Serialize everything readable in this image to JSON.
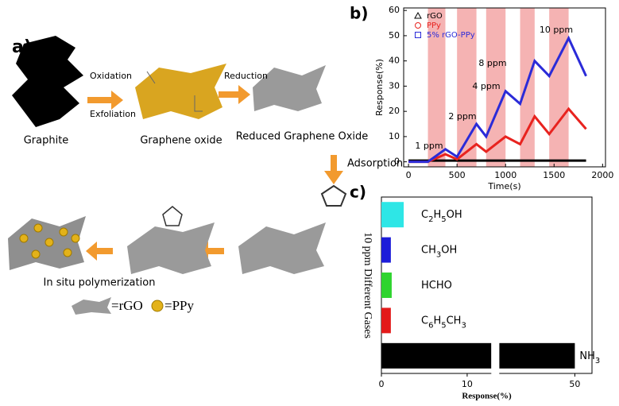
{
  "diagram": {
    "panel_label": "a)",
    "start": "Graphite",
    "step1_top": "Oxidation",
    "step1_bottom": "Exfoliation",
    "intermediate": "Graphene oxide",
    "step2": "Reduction",
    "reduced": "Reduced Graphene Oxide",
    "step3": "Adsorption",
    "final": "In situ polymerization",
    "legend_rgo": "=rGO",
    "legend_ppy": "=PPy"
  },
  "chart_data": [
    {
      "type": "line",
      "panel_label": "b)",
      "x_label": "Time(s)",
      "y_label": "Response(%)",
      "x": [
        0,
        200,
        380,
        500,
        700,
        800,
        1000,
        1150,
        1300,
        1450,
        1650,
        1830
      ],
      "series": [
        {
          "name": "rGO",
          "color": "#000000",
          "marker": "triangle",
          "values": [
            0.5,
            0.5,
            0.5,
            0.5,
            0.5,
            0.5,
            0.5,
            0.5,
            0.5,
            0.5,
            0.5,
            0.5
          ]
        },
        {
          "name": "PPy",
          "color": "#e8231f",
          "marker": "circle",
          "values": [
            0,
            0,
            3,
            1,
            7,
            4,
            10,
            7,
            18,
            11,
            21,
            13
          ]
        },
        {
          "name": "5% rGO-PPy",
          "color": "#2b2bd8",
          "marker": "square",
          "values": [
            0,
            0,
            5,
            2,
            15,
            10,
            28,
            23,
            40,
            34,
            49,
            34
          ]
        }
      ],
      "shaded_spans": [
        [
          200,
          380
        ],
        [
          500,
          700
        ],
        [
          800,
          1000
        ],
        [
          1150,
          1300
        ],
        [
          1450,
          1650
        ]
      ],
      "annotations": [
        "1 ppm",
        "2 ppm",
        "4 ppm",
        "8 ppm",
        "10 ppm"
      ],
      "xlim": [
        -50,
        2030
      ],
      "xticks": [
        0,
        500,
        1000,
        1500,
        2000
      ],
      "ylim": [
        -2,
        61
      ],
      "yticks": [
        0,
        10,
        20,
        30,
        40,
        50,
        60
      ],
      "legend": "upper-left"
    },
    {
      "type": "hbar",
      "panel_label": "c)",
      "x_label": "Response(%)",
      "y_label": "10 ppm Different Gases",
      "categories": [
        "C2H5OH",
        "CH3OH",
        "HCHO",
        "C6H5CH3",
        "NH3"
      ],
      "values": [
        2.6,
        1.1,
        1.2,
        1.1,
        50
      ],
      "colors": [
        "#2ee6e6",
        "#1c1cd9",
        "#2fd42f",
        "#e31a1a",
        "#000000"
      ],
      "xlim": [
        0,
        52
      ],
      "xbreak": [
        13,
        41
      ],
      "xticks": [
        0,
        10,
        50
      ]
    }
  ]
}
